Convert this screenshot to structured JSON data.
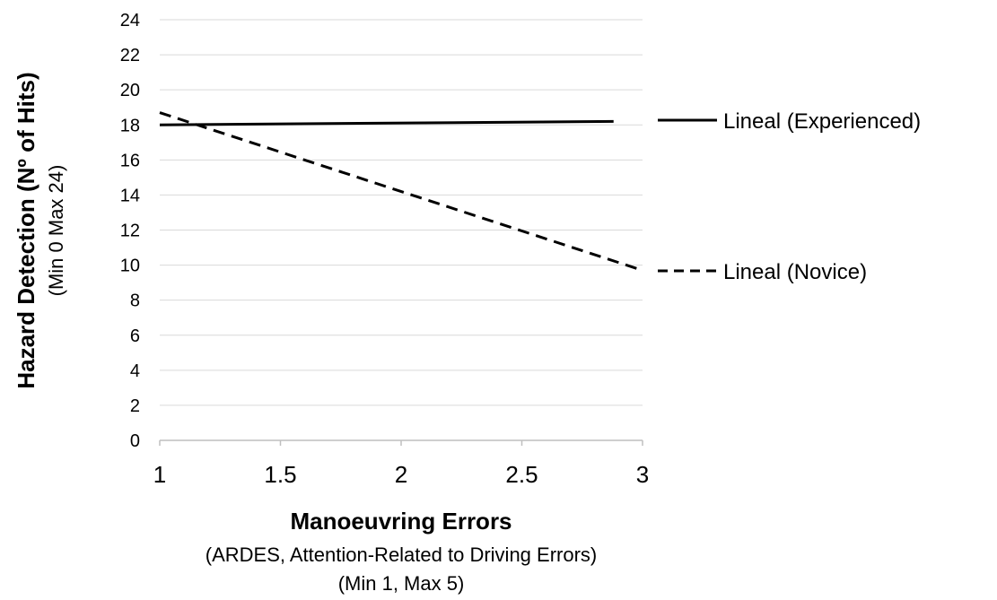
{
  "chart_data": {
    "type": "line",
    "title": "",
    "xlabel": "Manoeuvring Errors",
    "xlabel_sub": [
      "(ARDES, Attention-Related to Driving Errors)",
      "(Min 1, Max 5)"
    ],
    "ylabel": "Hazard Detection (Nº of Hits)",
    "ylabel_sub": "(Min 0 Max 24)",
    "xlim": [
      1,
      3
    ],
    "ylim": [
      0,
      24
    ],
    "x_ticks": [
      1,
      1.5,
      2,
      2.5,
      3
    ],
    "x_tick_labels": [
      "1",
      "1.5",
      "2",
      "2.5",
      "3"
    ],
    "y_ticks": [
      0,
      2,
      4,
      6,
      8,
      10,
      12,
      14,
      16,
      18,
      20,
      22,
      24
    ],
    "y_tick_labels": [
      "0",
      "2",
      "4",
      "6",
      "8",
      "10",
      "12",
      "14",
      "16",
      "18",
      "20",
      "22",
      "24"
    ],
    "grid": "horizontal",
    "legend_position": "right",
    "series": [
      {
        "name": "Lineal (Experienced)",
        "style": "solid",
        "color": "#000000",
        "x": [
          1,
          2.88
        ],
        "y": [
          18.0,
          18.2
        ]
      },
      {
        "name": "Lineal (Novice)",
        "style": "dashed",
        "color": "#000000",
        "x": [
          1,
          3
        ],
        "y": [
          18.7,
          9.7
        ]
      }
    ]
  }
}
